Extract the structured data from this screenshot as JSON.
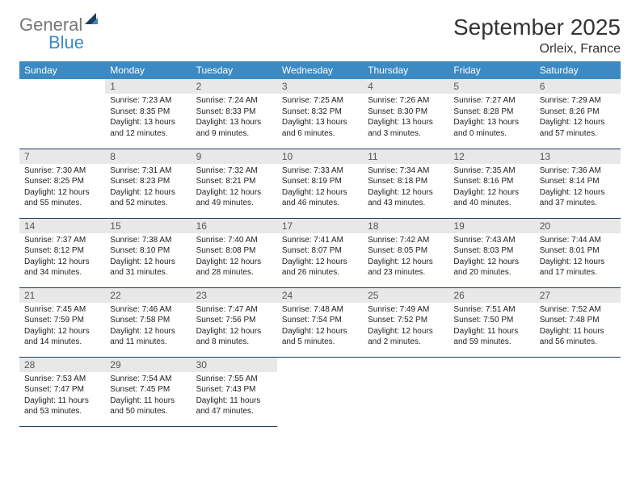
{
  "brand": {
    "part1": "General",
    "part2": "Blue"
  },
  "title": "September 2025",
  "location": "Orleix, France",
  "colors": {
    "header_bg": "#3b8ac4",
    "border": "#1f3a5f",
    "daynum_bg": "#e8e8e8",
    "text": "#222222"
  },
  "fonts": {
    "title_size": 28,
    "location_size": 16,
    "dayhead_size": 12,
    "body_size": 10
  },
  "day_headers": [
    "Sunday",
    "Monday",
    "Tuesday",
    "Wednesday",
    "Thursday",
    "Friday",
    "Saturday"
  ],
  "first_weekday_offset": 1,
  "days": [
    {
      "n": "1",
      "sunrise": "Sunrise: 7:23 AM",
      "sunset": "Sunset: 8:35 PM",
      "daylight": "Daylight: 13 hours and 12 minutes."
    },
    {
      "n": "2",
      "sunrise": "Sunrise: 7:24 AM",
      "sunset": "Sunset: 8:33 PM",
      "daylight": "Daylight: 13 hours and 9 minutes."
    },
    {
      "n": "3",
      "sunrise": "Sunrise: 7:25 AM",
      "sunset": "Sunset: 8:32 PM",
      "daylight": "Daylight: 13 hours and 6 minutes."
    },
    {
      "n": "4",
      "sunrise": "Sunrise: 7:26 AM",
      "sunset": "Sunset: 8:30 PM",
      "daylight": "Daylight: 13 hours and 3 minutes."
    },
    {
      "n": "5",
      "sunrise": "Sunrise: 7:27 AM",
      "sunset": "Sunset: 8:28 PM",
      "daylight": "Daylight: 13 hours and 0 minutes."
    },
    {
      "n": "6",
      "sunrise": "Sunrise: 7:29 AM",
      "sunset": "Sunset: 8:26 PM",
      "daylight": "Daylight: 12 hours and 57 minutes."
    },
    {
      "n": "7",
      "sunrise": "Sunrise: 7:30 AM",
      "sunset": "Sunset: 8:25 PM",
      "daylight": "Daylight: 12 hours and 55 minutes."
    },
    {
      "n": "8",
      "sunrise": "Sunrise: 7:31 AM",
      "sunset": "Sunset: 8:23 PM",
      "daylight": "Daylight: 12 hours and 52 minutes."
    },
    {
      "n": "9",
      "sunrise": "Sunrise: 7:32 AM",
      "sunset": "Sunset: 8:21 PM",
      "daylight": "Daylight: 12 hours and 49 minutes."
    },
    {
      "n": "10",
      "sunrise": "Sunrise: 7:33 AM",
      "sunset": "Sunset: 8:19 PM",
      "daylight": "Daylight: 12 hours and 46 minutes."
    },
    {
      "n": "11",
      "sunrise": "Sunrise: 7:34 AM",
      "sunset": "Sunset: 8:18 PM",
      "daylight": "Daylight: 12 hours and 43 minutes."
    },
    {
      "n": "12",
      "sunrise": "Sunrise: 7:35 AM",
      "sunset": "Sunset: 8:16 PM",
      "daylight": "Daylight: 12 hours and 40 minutes."
    },
    {
      "n": "13",
      "sunrise": "Sunrise: 7:36 AM",
      "sunset": "Sunset: 8:14 PM",
      "daylight": "Daylight: 12 hours and 37 minutes."
    },
    {
      "n": "14",
      "sunrise": "Sunrise: 7:37 AM",
      "sunset": "Sunset: 8:12 PM",
      "daylight": "Daylight: 12 hours and 34 minutes."
    },
    {
      "n": "15",
      "sunrise": "Sunrise: 7:38 AM",
      "sunset": "Sunset: 8:10 PM",
      "daylight": "Daylight: 12 hours and 31 minutes."
    },
    {
      "n": "16",
      "sunrise": "Sunrise: 7:40 AM",
      "sunset": "Sunset: 8:08 PM",
      "daylight": "Daylight: 12 hours and 28 minutes."
    },
    {
      "n": "17",
      "sunrise": "Sunrise: 7:41 AM",
      "sunset": "Sunset: 8:07 PM",
      "daylight": "Daylight: 12 hours and 26 minutes."
    },
    {
      "n": "18",
      "sunrise": "Sunrise: 7:42 AM",
      "sunset": "Sunset: 8:05 PM",
      "daylight": "Daylight: 12 hours and 23 minutes."
    },
    {
      "n": "19",
      "sunrise": "Sunrise: 7:43 AM",
      "sunset": "Sunset: 8:03 PM",
      "daylight": "Daylight: 12 hours and 20 minutes."
    },
    {
      "n": "20",
      "sunrise": "Sunrise: 7:44 AM",
      "sunset": "Sunset: 8:01 PM",
      "daylight": "Daylight: 12 hours and 17 minutes."
    },
    {
      "n": "21",
      "sunrise": "Sunrise: 7:45 AM",
      "sunset": "Sunset: 7:59 PM",
      "daylight": "Daylight: 12 hours and 14 minutes."
    },
    {
      "n": "22",
      "sunrise": "Sunrise: 7:46 AM",
      "sunset": "Sunset: 7:58 PM",
      "daylight": "Daylight: 12 hours and 11 minutes."
    },
    {
      "n": "23",
      "sunrise": "Sunrise: 7:47 AM",
      "sunset": "Sunset: 7:56 PM",
      "daylight": "Daylight: 12 hours and 8 minutes."
    },
    {
      "n": "24",
      "sunrise": "Sunrise: 7:48 AM",
      "sunset": "Sunset: 7:54 PM",
      "daylight": "Daylight: 12 hours and 5 minutes."
    },
    {
      "n": "25",
      "sunrise": "Sunrise: 7:49 AM",
      "sunset": "Sunset: 7:52 PM",
      "daylight": "Daylight: 12 hours and 2 minutes."
    },
    {
      "n": "26",
      "sunrise": "Sunrise: 7:51 AM",
      "sunset": "Sunset: 7:50 PM",
      "daylight": "Daylight: 11 hours and 59 minutes."
    },
    {
      "n": "27",
      "sunrise": "Sunrise: 7:52 AM",
      "sunset": "Sunset: 7:48 PM",
      "daylight": "Daylight: 11 hours and 56 minutes."
    },
    {
      "n": "28",
      "sunrise": "Sunrise: 7:53 AM",
      "sunset": "Sunset: 7:47 PM",
      "daylight": "Daylight: 11 hours and 53 minutes."
    },
    {
      "n": "29",
      "sunrise": "Sunrise: 7:54 AM",
      "sunset": "Sunset: 7:45 PM",
      "daylight": "Daylight: 11 hours and 50 minutes."
    },
    {
      "n": "30",
      "sunrise": "Sunrise: 7:55 AM",
      "sunset": "Sunset: 7:43 PM",
      "daylight": "Daylight: 11 hours and 47 minutes."
    }
  ]
}
